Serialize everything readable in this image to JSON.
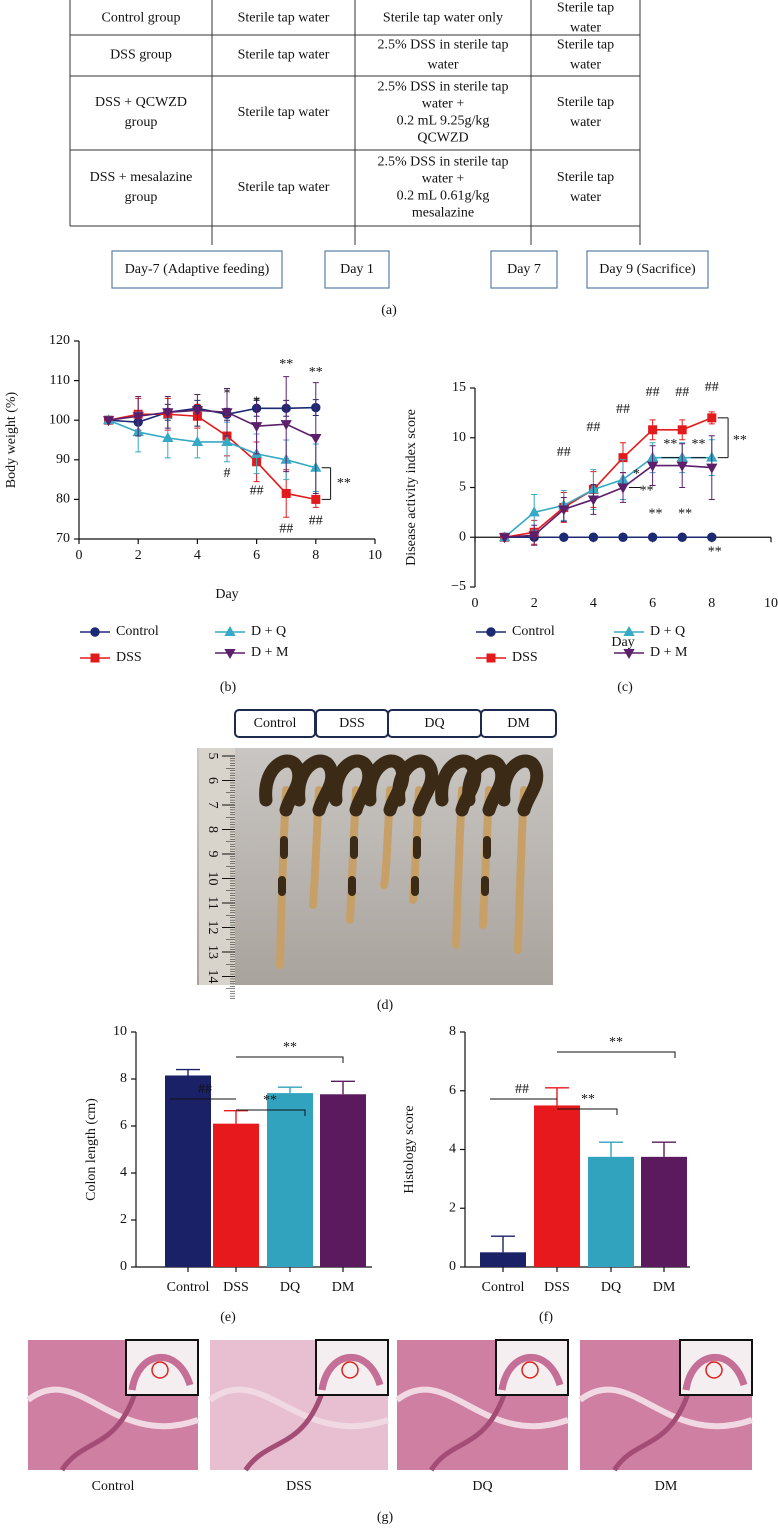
{
  "table": {
    "rows": [
      [
        [
          "Control group"
        ],
        [
          "Sterile tap water"
        ],
        [
          "Sterile tap water only"
        ],
        [
          "Sterile tap",
          "water"
        ]
      ],
      [
        [
          "DSS group"
        ],
        [
          "Sterile tap water"
        ],
        [
          "2.5% DSS in sterile tap",
          "water"
        ],
        [
          "Sterile tap",
          "water"
        ]
      ],
      [
        [
          "DSS + QCWZD",
          "group"
        ],
        [
          "Sterile tap water"
        ],
        [
          "2.5% DSS in sterile tap",
          "water +",
          "0.2 mL 9.25g/kg",
          "QCWZD"
        ],
        [
          "Sterile tap",
          "water"
        ]
      ],
      [
        [
          "DSS + mesalazine",
          "group"
        ],
        [
          "Sterile tap water"
        ],
        [
          "2.5% DSS in sterile tap",
          "water +",
          "0.2 mL 0.61g/kg",
          "mesalazine"
        ],
        [
          "Sterile tap",
          "water"
        ]
      ]
    ],
    "timeline": [
      "Day-7 (Adaptive feeding)",
      "Day 1",
      "Day 7",
      "Day 9 (Sacrifice)"
    ],
    "panel_label": "(a)"
  },
  "chart_data": [
    {
      "type": "line",
      "panel_label": "(b)",
      "xlabel": "Day",
      "ylabel": "Body weight (%)",
      "x": [
        1,
        2,
        3,
        4,
        5,
        6,
        7,
        8
      ],
      "xlim": [
        0,
        10
      ],
      "xticks": [
        0,
        2,
        4,
        6,
        8,
        10
      ],
      "ylim": [
        70,
        120
      ],
      "yticks": [
        70,
        80,
        90,
        100,
        110,
        120
      ],
      "series": [
        {
          "name": "Control",
          "color": "#1b2a72",
          "marker": "circle",
          "values": [
            100,
            99.5,
            102,
            103,
            101.5,
            103,
            103,
            103.2
          ],
          "errors": [
            0,
            2,
            2,
            2,
            1.5,
            2,
            2,
            2
          ]
        },
        {
          "name": "DSS",
          "color": "#e21a1c",
          "marker": "square",
          "values": [
            100,
            101.5,
            101.5,
            101,
            96,
            89.5,
            81.5,
            80
          ],
          "errors": [
            0,
            4,
            4,
            3,
            5,
            5,
            6,
            2
          ]
        },
        {
          "name": "D + Q",
          "color": "#36a9c4",
          "marker": "triangle-up",
          "values": [
            100,
            97,
            95.5,
            94.5,
            94.5,
            91.5,
            90,
            88
          ],
          "errors": [
            0,
            5,
            5,
            4,
            5,
            5,
            5,
            6
          ]
        },
        {
          "name": "D + M",
          "color": "#5c1f6b",
          "marker": "triangle-down",
          "values": [
            100,
            101,
            102,
            102.5,
            102,
            98.5,
            99,
            95.5
          ],
          "errors": [
            0,
            5,
            4,
            4,
            6,
            7,
            12,
            14
          ]
        }
      ],
      "annotations": [
        "*",
        "*",
        "**",
        "**",
        "#",
        "##",
        "##",
        "##",
        "**"
      ]
    },
    {
      "type": "line",
      "panel_label": "(c)",
      "xlabel": "Day",
      "ylabel": "Disease activity index score",
      "x": [
        1,
        2,
        3,
        4,
        5,
        6,
        7,
        8
      ],
      "xlim": [
        0,
        10
      ],
      "xticks": [
        0,
        2,
        4,
        6,
        8,
        10
      ],
      "ylim": [
        -5,
        15
      ],
      "yticks": [
        {
          "value": -5,
          "label": "−5"
        },
        0,
        5,
        10,
        15
      ],
      "series": [
        {
          "name": "Control",
          "color": "#1b2a72",
          "marker": "circle",
          "values": [
            0,
            0,
            0,
            0,
            0,
            0,
            0,
            0
          ],
          "errors": [
            0,
            0,
            0,
            0,
            0,
            0,
            0,
            0
          ]
        },
        {
          "name": "DSS",
          "color": "#e21a1c",
          "marker": "square",
          "values": [
            0,
            0.5,
            3,
            4.8,
            8,
            10.8,
            10.8,
            12
          ],
          "errors": [
            0,
            1.2,
            1.5,
            1.8,
            1.5,
            1,
            1,
            0.6
          ]
        },
        {
          "name": "D + Q",
          "color": "#36a9c4",
          "marker": "triangle-up",
          "values": [
            0,
            2.5,
            3.2,
            4.8,
            5.8,
            8,
            8,
            8
          ],
          "errors": [
            0,
            1.8,
            1.5,
            2,
            2,
            1.5,
            1.5,
            1.8
          ]
        },
        {
          "name": "D + M",
          "color": "#5c1f6b",
          "marker": "triangle-down",
          "values": [
            0,
            0.2,
            2.8,
            3.8,
            5,
            7.2,
            7.2,
            7
          ],
          "errors": [
            0,
            1,
            1.2,
            1.5,
            1.5,
            2,
            2.2,
            3.2
          ]
        }
      ],
      "annotations": [
        "##",
        "##",
        "##",
        "##",
        "##",
        "##",
        "*",
        "**",
        "**",
        "**",
        "**",
        "**",
        "**",
        "**"
      ]
    },
    {
      "type": "bar",
      "panel_label": "(e)",
      "ylabel": "Colon length (cm)",
      "categories": [
        "Control",
        "DSS",
        "DQ",
        "DM"
      ],
      "values": [
        8.15,
        6.1,
        7.4,
        7.35
      ],
      "errors": [
        0.25,
        0.55,
        0.25,
        0.55
      ],
      "colors": [
        "#1a2166",
        "#e8191c",
        "#31a3bf",
        "#5b1a5e"
      ],
      "ylim": [
        0,
        10
      ],
      "yticks": [
        0,
        2,
        4,
        6,
        8,
        10
      ],
      "annotations": [
        "##",
        "**",
        "**"
      ]
    },
    {
      "type": "bar",
      "panel_label": "(f)",
      "ylabel": "Histology score",
      "categories": [
        "Control",
        "DSS",
        "DQ",
        "DM"
      ],
      "values": [
        0.5,
        5.5,
        3.75,
        3.75
      ],
      "errors": [
        0.55,
        0.6,
        0.5,
        0.5
      ],
      "colors": [
        "#1a2166",
        "#e8191c",
        "#31a3bf",
        "#5b1a5e"
      ],
      "ylim": [
        0,
        8
      ],
      "yticks": [
        0,
        2,
        4,
        6,
        8
      ],
      "annotations": [
        "##",
        "**",
        "**"
      ]
    }
  ],
  "panel_d": {
    "groups": [
      "Control",
      "DSS",
      "DQ",
      "DM"
    ],
    "ruler": [
      5,
      6,
      7,
      8,
      9,
      10,
      11,
      12,
      13,
      14
    ],
    "panel_label": "(d)"
  },
  "panel_g": {
    "labels": [
      "Control",
      "DSS",
      "DQ",
      "DM"
    ],
    "panel_label": "(g)"
  }
}
